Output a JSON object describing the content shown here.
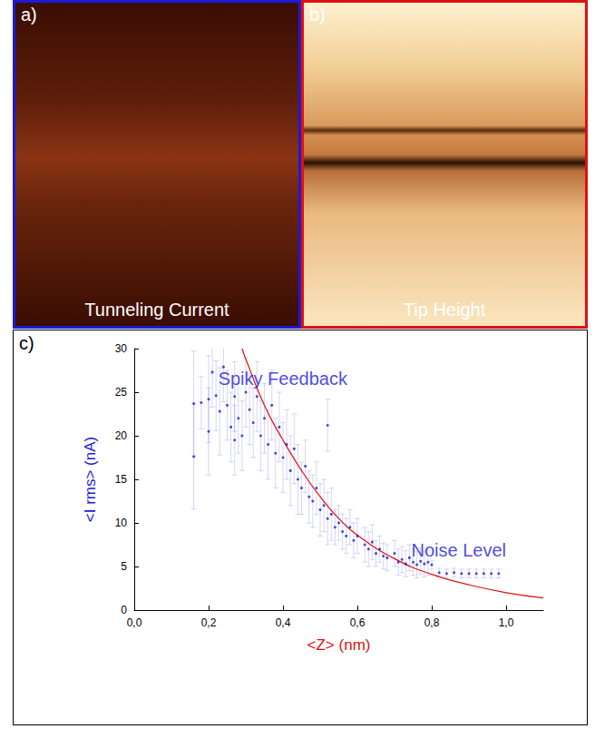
{
  "panels": [
    {
      "label": "a)",
      "caption": "Tunneling Current",
      "border": "#1a1ad8"
    },
    {
      "label": "b)",
      "caption": "Tip Height",
      "border": "#e01010"
    }
  ],
  "chart_data": {
    "type": "scatter",
    "label": "c)",
    "x_label": "<Z> (nm)",
    "y_label": "<I rms> (nA)",
    "x_label_color": "#e01010",
    "y_label_color": "#1a1ad8",
    "xlim": [
      0,
      1.1
    ],
    "xticks": [
      {
        "value": 0,
        "label": "0,0"
      },
      {
        "value": 0.2,
        "label": "0,2"
      },
      {
        "value": 0.4,
        "label": "0,4"
      },
      {
        "value": 0.6,
        "label": "0,6"
      },
      {
        "value": 0.8,
        "label": "0,8"
      },
      {
        "value": 1.0,
        "label": "1,0"
      }
    ],
    "ylim": [
      0,
      30
    ],
    "yticks": [
      0,
      5,
      10,
      15,
      20,
      25,
      30
    ],
    "grid": false,
    "points": {
      "color": "#1a1ad8",
      "marker": "circle",
      "x": [
        0.16,
        0.16,
        0.18,
        0.2,
        0.2,
        0.21,
        0.22,
        0.23,
        0.24,
        0.25,
        0.26,
        0.27,
        0.27,
        0.28,
        0.29,
        0.3,
        0.31,
        0.32,
        0.33,
        0.34,
        0.35,
        0.36,
        0.37,
        0.38,
        0.39,
        0.4,
        0.41,
        0.42,
        0.43,
        0.44,
        0.45,
        0.46,
        0.47,
        0.48,
        0.49,
        0.5,
        0.51,
        0.52,
        0.52,
        0.53,
        0.54,
        0.55,
        0.56,
        0.57,
        0.58,
        0.59,
        0.6,
        0.62,
        0.63,
        0.64,
        0.65,
        0.66,
        0.67,
        0.68,
        0.7,
        0.71,
        0.72,
        0.73,
        0.74,
        0.75,
        0.76,
        0.77,
        0.78,
        0.79,
        0.8,
        0.82,
        0.84,
        0.86,
        0.88,
        0.9,
        0.92,
        0.94,
        0.96,
        0.98
      ],
      "values": [
        23.7,
        17.6,
        23.8,
        24.2,
        20.5,
        27.3,
        24.6,
        22.8,
        27.9,
        23.5,
        21,
        24.5,
        19.5,
        22,
        20,
        25,
        23,
        21.5,
        24.5,
        20,
        22,
        19,
        23.5,
        18,
        21,
        17.5,
        19,
        16,
        18.5,
        15,
        14,
        16.5,
        13,
        12.5,
        14,
        11.5,
        12,
        21.2,
        10.5,
        11,
        9.5,
        10,
        9,
        8.5,
        9.5,
        8,
        8.5,
        7.5,
        7,
        7.8,
        6.5,
        7,
        6.2,
        6,
        6.5,
        5.5,
        5.8,
        5.3,
        6,
        5.5,
        5.2,
        5.6,
        5.3,
        5.5,
        5.2,
        4.3,
        4.2,
        4.3,
        4.2,
        4.2,
        4.2,
        4.2,
        4.2,
        4.2
      ],
      "errors": [
        6,
        6,
        3,
        5,
        5,
        4,
        4,
        5,
        4,
        4,
        4,
        4,
        4,
        4,
        4,
        4,
        4,
        4,
        4,
        4,
        4,
        4,
        4,
        4,
        4,
        4,
        4,
        4,
        4,
        4,
        3,
        3,
        3,
        3,
        3,
        3,
        3,
        3,
        3,
        3,
        2,
        2,
        2,
        2,
        2,
        2,
        2,
        2,
        2,
        2,
        1.5,
        1.5,
        1.5,
        1.5,
        1.5,
        1.5,
        1.5,
        1.5,
        1.5,
        1.5,
        1.5,
        1.5,
        1.5,
        1.5,
        0.5,
        0.5,
        0.5,
        0.5,
        0.5,
        0.5,
        0.5,
        0.5,
        0.5,
        0.5
      ]
    },
    "fit": {
      "type": "line",
      "color": "#e01010",
      "line_style": "solid",
      "x": [
        0.29,
        0.3,
        0.35,
        0.4,
        0.45,
        0.5,
        0.55,
        0.6,
        0.7,
        0.8,
        0.9,
        1.0,
        1.1
      ],
      "values": [
        30,
        28.8,
        23.5,
        19.5,
        16,
        13,
        10.5,
        8.6,
        5.9,
        4.1,
        2.9,
        2,
        1.4
      ]
    },
    "annotations": [
      {
        "text": "Spiky Feedback",
        "x": 0.226,
        "y": 26.6,
        "color": "#1a1ad8"
      },
      {
        "text": "Noise Level",
        "x": 0.745,
        "y": 6.9,
        "color": "#1a1ad8"
      }
    ]
  }
}
